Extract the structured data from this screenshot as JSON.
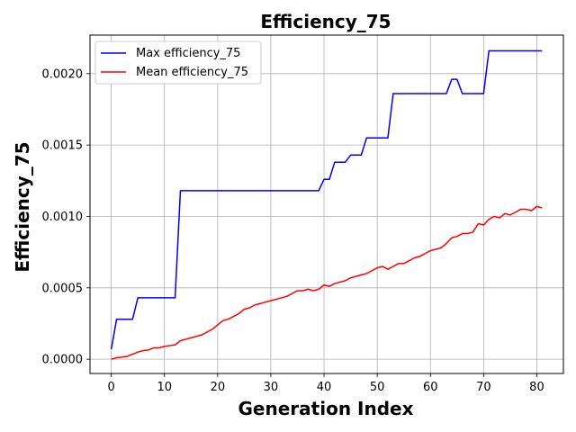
{
  "chart_data": {
    "type": "line",
    "title": "Efficiency_75",
    "xlabel": "Generation Index",
    "ylabel": "Efficiency_75",
    "xlim": [
      -4,
      85
    ],
    "ylim": [
      -0.0001,
      0.00227
    ],
    "xticks": [
      0,
      10,
      20,
      30,
      40,
      50,
      60,
      70,
      80
    ],
    "xtick_labels": [
      "0",
      "10",
      "20",
      "30",
      "40",
      "50",
      "60",
      "70",
      "80"
    ],
    "yticks": [
      0.0,
      0.0005,
      0.001,
      0.0015,
      0.002
    ],
    "ytick_labels": [
      "0.0000",
      "0.0005",
      "0.0010",
      "0.0015",
      "0.0020"
    ],
    "grid": true,
    "legend_position": "top-left",
    "x": [
      0,
      1,
      2,
      3,
      4,
      5,
      6,
      7,
      8,
      9,
      10,
      11,
      12,
      13,
      14,
      15,
      16,
      17,
      18,
      19,
      20,
      21,
      22,
      23,
      24,
      25,
      26,
      27,
      28,
      29,
      30,
      31,
      32,
      33,
      34,
      35,
      36,
      37,
      38,
      39,
      40,
      41,
      42,
      43,
      44,
      45,
      46,
      47,
      48,
      49,
      50,
      51,
      52,
      53,
      54,
      55,
      56,
      57,
      58,
      59,
      60,
      61,
      62,
      63,
      64,
      65,
      66,
      67,
      68,
      69,
      70,
      71,
      72,
      73,
      74,
      75,
      76,
      77,
      78,
      79,
      80,
      81
    ],
    "series": [
      {
        "name": "Max efficiency_75",
        "color": "#0000ff",
        "values": [
          7e-05,
          0.00028,
          0.00028,
          0.00028,
          0.00028,
          0.00043,
          0.00043,
          0.00043,
          0.00043,
          0.00043,
          0.00043,
          0.00043,
          0.00043,
          0.00118,
          0.00118,
          0.00118,
          0.00118,
          0.00118,
          0.00118,
          0.00118,
          0.00118,
          0.00118,
          0.00118,
          0.00118,
          0.00118,
          0.00118,
          0.00118,
          0.00118,
          0.00118,
          0.00118,
          0.00118,
          0.00118,
          0.00118,
          0.00118,
          0.00118,
          0.00118,
          0.00118,
          0.00118,
          0.00118,
          0.00118,
          0.00126,
          0.00126,
          0.00138,
          0.00138,
          0.00138,
          0.00143,
          0.00143,
          0.00143,
          0.00155,
          0.00155,
          0.00155,
          0.00155,
          0.00155,
          0.00186,
          0.00186,
          0.00186,
          0.00186,
          0.00186,
          0.00186,
          0.00186,
          0.00186,
          0.00186,
          0.00186,
          0.00186,
          0.00196,
          0.00196,
          0.00186,
          0.00186,
          0.00186,
          0.00186,
          0.00186,
          0.00216,
          0.00216,
          0.00216,
          0.00216,
          0.00216,
          0.00216,
          0.00216,
          0.00216,
          0.00216,
          0.00216,
          0.00216
        ]
      },
      {
        "name": "Mean efficiency_75",
        "color": "#ff0000",
        "values": [
          0.0,
          1e-05,
          1.5e-05,
          2e-05,
          3.5e-05,
          5e-05,
          6e-05,
          6.5e-05,
          8e-05,
          8e-05,
          9e-05,
          9.5e-05,
          0.0001,
          0.00013,
          0.00014,
          0.00015,
          0.00016,
          0.00017,
          0.00019,
          0.00021,
          0.00024,
          0.00027,
          0.00028,
          0.0003,
          0.00032,
          0.00035,
          0.00036,
          0.00038,
          0.00039,
          0.0004,
          0.00041,
          0.00042,
          0.00043,
          0.00044,
          0.00046,
          0.00048,
          0.00048,
          0.00049,
          0.00048,
          0.00049,
          0.00052,
          0.00051,
          0.00053,
          0.00054,
          0.00055,
          0.00057,
          0.00058,
          0.00059,
          0.0006,
          0.00062,
          0.00064,
          0.00065,
          0.00063,
          0.00065,
          0.00067,
          0.00067,
          0.00069,
          0.00071,
          0.00072,
          0.00074,
          0.00076,
          0.00077,
          0.00078,
          0.00081,
          0.00085,
          0.00086,
          0.00088,
          0.00088,
          0.00089,
          0.00095,
          0.00094,
          0.00098,
          0.001,
          0.00099,
          0.00102,
          0.00101,
          0.00103,
          0.00105,
          0.00105,
          0.00104,
          0.00107,
          0.00106
        ]
      }
    ]
  }
}
